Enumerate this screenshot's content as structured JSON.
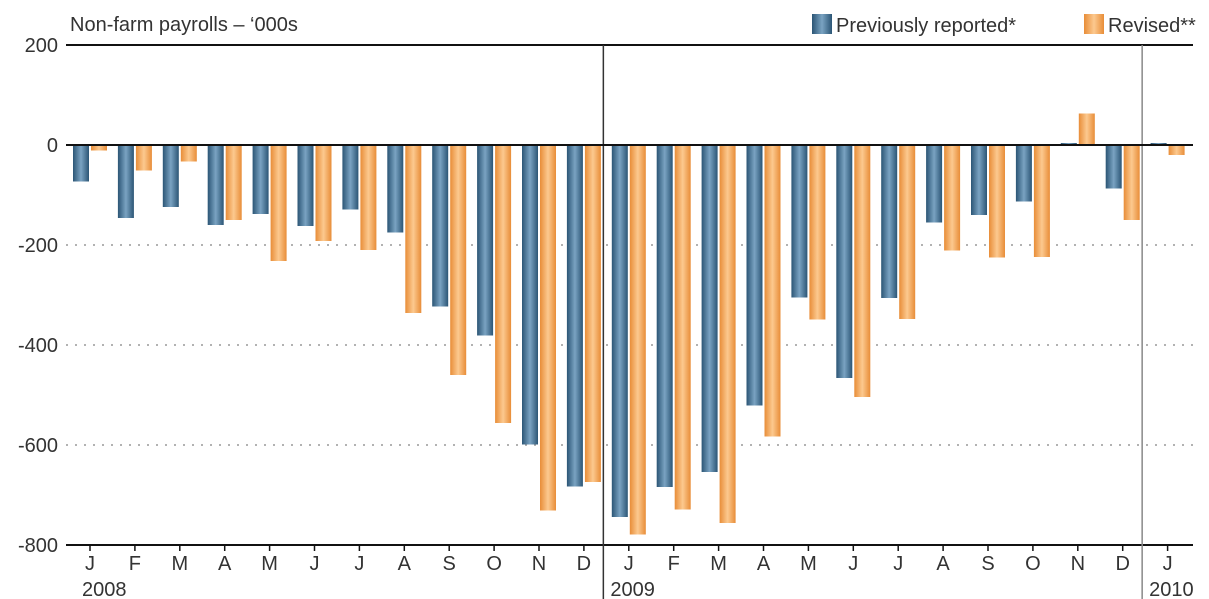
{
  "chart_data": {
    "type": "bar",
    "title": "Non-farm payrolls – ‘000s",
    "categories": [
      "J",
      "F",
      "M",
      "A",
      "M",
      "J",
      "J",
      "A",
      "S",
      "O",
      "N",
      "D",
      "J",
      "F",
      "M",
      "A",
      "M",
      "J",
      "J",
      "A",
      "S",
      "O",
      "N",
      "D",
      "J"
    ],
    "years": [
      {
        "label": "2008",
        "start_index": 0
      },
      {
        "label": "2009",
        "start_index": 12
      },
      {
        "label": "2010",
        "start_index": 24
      }
    ],
    "series": [
      {
        "name": "Previously reported*",
        "color": "#3d6f93",
        "values": [
          -73,
          -146,
          -124,
          -160,
          -138,
          -162,
          -129,
          -175,
          -323,
          -381,
          -599,
          -683,
          -744,
          -684,
          -654,
          -521,
          -305,
          -466,
          -306,
          -155,
          -140,
          -113,
          4,
          -87,
          4
        ]
      },
      {
        "name": "Revised**",
        "color": "#f6a95a",
        "values": [
          -11,
          -51,
          -33,
          -150,
          -232,
          -192,
          -210,
          -336,
          -460,
          -556,
          -731,
          -674,
          -779,
          -729,
          -756,
          -583,
          -349,
          -504,
          -348,
          -211,
          -225,
          -224,
          63,
          -150,
          -20
        ]
      }
    ],
    "yticks": [
      200,
      0,
      -200,
      -400,
      -600,
      -800
    ],
    "ylim": [
      -800,
      200
    ],
    "legend_position": "top-right",
    "grid": "dotted"
  }
}
